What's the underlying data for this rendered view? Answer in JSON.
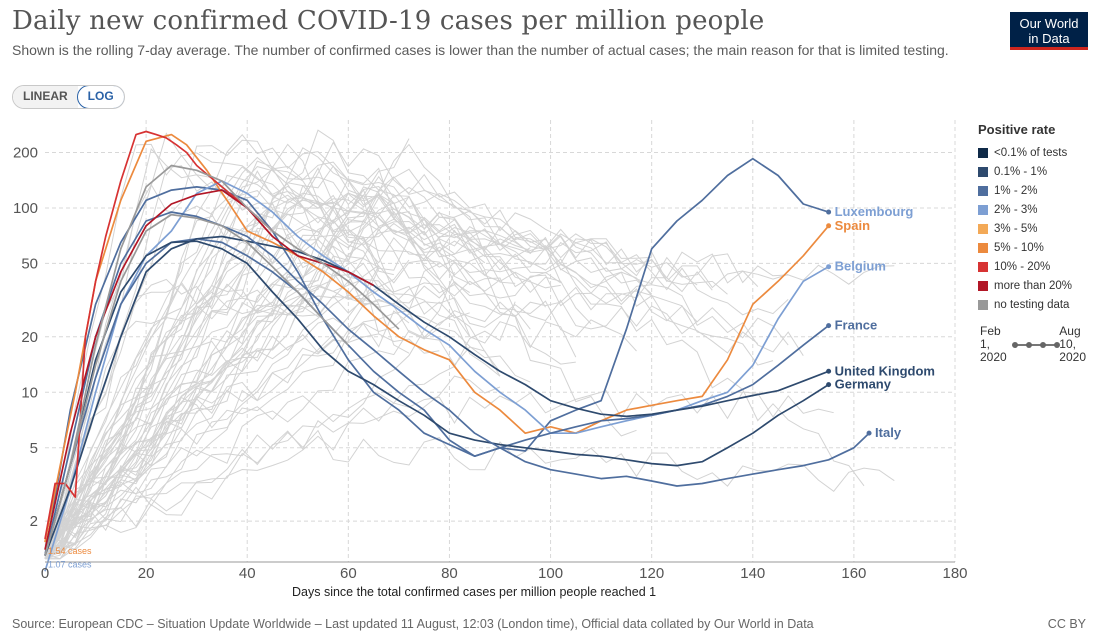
{
  "header": {
    "title": "Daily new confirmed COVID-19 cases per million people",
    "subtitle": "Shown is the rolling 7-day average. The number of confirmed cases is lower than the number of actual cases; the main reason for that is limited testing.",
    "logo_line1": "Our World",
    "logo_line2": "in Data"
  },
  "scale_toggle": {
    "linear_label": "LINEAR",
    "log_label": "LOG",
    "selected": "LOG"
  },
  "legend": {
    "title": "Positive rate",
    "items": [
      {
        "label": "<0.1% of tests",
        "color": "#0f2a48"
      },
      {
        "label": "0.1% - 1%",
        "color": "#2e4a6e"
      },
      {
        "label": "1% - 2%",
        "color": "#4f6e9e"
      },
      {
        "label": "2% - 3%",
        "color": "#7d9fd3"
      },
      {
        "label": "3% - 5%",
        "color": "#f3a957"
      },
      {
        "label": "5% - 10%",
        "color": "#ec8a3e"
      },
      {
        "label": "10% - 20%",
        "color": "#d73333"
      },
      {
        "label": "more than 20%",
        "color": "#b21626"
      },
      {
        "label": "no testing data",
        "color": "#999999"
      }
    ]
  },
  "timeline": {
    "start_line1": "Feb",
    "start_line2": "1,",
    "start_line3": "2020",
    "end_line1": "Aug",
    "end_line2": "10,",
    "end_line3": "2020"
  },
  "footer": {
    "source": "Source: European CDC – Situation Update Worldwide – Last updated 11 August, 12:03 (London time), Official data collated by Our World in Data",
    "license": "CC BY"
  },
  "chart_data": {
    "type": "line",
    "title": "Daily new confirmed COVID-19 cases per million people",
    "xlabel": "Days since the total confirmed cases per million people reached 1",
    "ylabel": "",
    "y_scale": "log",
    "xlim": [
      0,
      180
    ],
    "ylim": [
      1.2,
      300
    ],
    "x_ticks": [
      0,
      20,
      40,
      60,
      80,
      100,
      120,
      140,
      160,
      180
    ],
    "y_ticks": [
      2,
      5,
      10,
      20,
      50,
      100,
      200
    ],
    "grid": true,
    "legend_position": "right",
    "start_annotations": [
      {
        "text": "1.54 cases",
        "x": 0,
        "y": 1.54,
        "color": "#ec8a3e"
      },
      {
        "text": "1.07 cases",
        "x": 0,
        "y": 1.3,
        "color": "#7d9fd3"
      }
    ],
    "series": [
      {
        "name": "Luxembourg",
        "color": "#4f6e9e",
        "label_color": "#7d9fd3",
        "x": [
          0,
          5,
          10,
          15,
          20,
          25,
          30,
          35,
          40,
          45,
          50,
          55,
          60,
          65,
          70,
          75,
          80,
          85,
          90,
          95,
          100,
          105,
          110,
          115,
          120,
          125,
          130,
          135,
          140,
          145,
          150,
          155
        ],
        "y": [
          1.3,
          8,
          30,
          65,
          110,
          125,
          130,
          125,
          110,
          75,
          45,
          25,
          15,
          10,
          8,
          6,
          5.2,
          4.5,
          5,
          4.8,
          7,
          8,
          9,
          22,
          60,
          85,
          110,
          150,
          185,
          150,
          105,
          95
        ]
      },
      {
        "name": "Spain",
        "color": "#ec8a3e",
        "label_color": "#ec8a3e",
        "x": [
          0,
          3,
          6,
          10,
          15,
          20,
          25,
          28,
          32,
          36,
          40,
          45,
          50,
          55,
          60,
          65,
          70,
          75,
          80,
          85,
          90,
          95,
          100,
          105,
          110,
          115,
          120,
          125,
          130,
          135,
          140,
          145,
          150,
          155
        ],
        "y": [
          1.54,
          4,
          10,
          40,
          110,
          230,
          250,
          220,
          160,
          110,
          75,
          65,
          55,
          45,
          35,
          26,
          20,
          17,
          15,
          10,
          8,
          6,
          6.5,
          6,
          7,
          8,
          8.5,
          9,
          9.5,
          15,
          30,
          40,
          55,
          80
        ]
      },
      {
        "name": "Belgium",
        "color": "#7d9fd3",
        "label_color": "#7d9fd3",
        "x": [
          0,
          5,
          10,
          15,
          20,
          25,
          30,
          35,
          40,
          45,
          50,
          55,
          60,
          65,
          70,
          75,
          80,
          85,
          90,
          95,
          100,
          105,
          110,
          115,
          120,
          125,
          130,
          135,
          140,
          145,
          150,
          155
        ],
        "y": [
          1.07,
          3,
          10,
          30,
          55,
          75,
          120,
          140,
          120,
          95,
          70,
          55,
          45,
          35,
          28,
          22,
          18,
          13,
          10,
          8,
          6,
          6,
          6.5,
          7,
          7.5,
          8,
          9,
          10,
          14,
          25,
          40,
          48
        ]
      },
      {
        "name": "France",
        "color": "#4f6e9e",
        "label_color": "#4f6e9e",
        "x": [
          0,
          5,
          10,
          15,
          20,
          25,
          30,
          35,
          40,
          45,
          50,
          55,
          60,
          65,
          70,
          75,
          80,
          85,
          90,
          95,
          100,
          105,
          110,
          115,
          120,
          125,
          130,
          135,
          140,
          145,
          150,
          155
        ],
        "y": [
          1.3,
          4,
          12,
          30,
          50,
          65,
          68,
          65,
          55,
          45,
          35,
          25,
          18,
          13,
          10,
          8,
          5.5,
          4.5,
          5,
          5.5,
          6,
          6.5,
          7,
          7.2,
          7.5,
          8,
          8.5,
          9.5,
          11,
          14,
          18,
          23
        ]
      },
      {
        "name": "United Kingdom",
        "color": "#2e4a6e",
        "label_color": "#2e4a6e",
        "x": [
          0,
          5,
          10,
          15,
          20,
          25,
          30,
          35,
          40,
          45,
          50,
          55,
          60,
          65,
          70,
          75,
          80,
          85,
          90,
          95,
          100,
          105,
          110,
          115,
          120,
          125,
          130,
          135,
          140,
          145,
          150,
          155
        ],
        "y": [
          1.3,
          3,
          8,
          20,
          45,
          60,
          68,
          70,
          66,
          62,
          58,
          52,
          45,
          38,
          30,
          24,
          20,
          16,
          13,
          11,
          9,
          8.2,
          7.6,
          7.4,
          7.6,
          8,
          8.4,
          9,
          9.6,
          10.2,
          11.5,
          13
        ]
      },
      {
        "name": "Germany",
        "color": "#2e4a6e",
        "label_color": "#2e4a6e",
        "x": [
          0,
          5,
          10,
          15,
          20,
          25,
          30,
          35,
          40,
          45,
          50,
          55,
          60,
          65,
          70,
          75,
          80,
          85,
          90,
          95,
          100,
          105,
          110,
          115,
          120,
          125,
          130,
          135,
          140,
          145,
          150,
          155
        ],
        "y": [
          1.3,
          4,
          15,
          35,
          55,
          65,
          66,
          60,
          50,
          35,
          25,
          17,
          13,
          11,
          9,
          7.5,
          6,
          5.5,
          5.2,
          5,
          4.8,
          4.6,
          4.5,
          4.3,
          4.1,
          4,
          4.2,
          5,
          6,
          7.5,
          9,
          11
        ]
      },
      {
        "name": "Italy",
        "color": "#4f6e9e",
        "label_color": "#4f6e9e",
        "x": [
          0,
          5,
          10,
          15,
          20,
          25,
          30,
          35,
          40,
          45,
          50,
          55,
          60,
          65,
          70,
          75,
          80,
          85,
          90,
          95,
          100,
          105,
          110,
          115,
          120,
          125,
          130,
          135,
          140,
          145,
          150,
          155,
          160,
          163
        ],
        "y": [
          1.3,
          5,
          20,
          50,
          85,
          95,
          90,
          80,
          70,
          55,
          40,
          30,
          22,
          17,
          13,
          10,
          8,
          6,
          5,
          4.2,
          3.8,
          3.6,
          3.4,
          3.5,
          3.3,
          3.1,
          3.2,
          3.4,
          3.6,
          3.8,
          4,
          4.3,
          5,
          6
        ]
      },
      {
        "name": "",
        "color": "#d73333",
        "label_color": "#d73333",
        "x": [
          0,
          2,
          4,
          6,
          8,
          10,
          12,
          15,
          18,
          20,
          22,
          24,
          26,
          28,
          30,
          35,
          40,
          45
        ],
        "y": [
          1.6,
          3.2,
          3.2,
          2.7,
          20,
          40,
          70,
          140,
          250,
          260,
          250,
          240,
          220,
          200,
          170,
          130,
          100,
          75
        ]
      },
      {
        "name": "",
        "color": "#b21626",
        "label_color": "#b21626",
        "x": [
          0,
          5,
          10,
          15,
          20,
          25,
          30,
          35,
          40,
          45,
          50,
          55,
          60,
          65
        ],
        "y": [
          1.4,
          6,
          20,
          45,
          80,
          105,
          118,
          125,
          100,
          70,
          55,
          50,
          45,
          38
        ]
      },
      {
        "name": "",
        "color": "#999999",
        "label_color": "#999999",
        "x": [
          0,
          5,
          10,
          15,
          20,
          25,
          30,
          35,
          40,
          45,
          50,
          55,
          60,
          65,
          70
        ],
        "y": [
          1.3,
          4,
          18,
          60,
          130,
          170,
          160,
          140,
          100,
          75,
          60,
          50,
          40,
          30,
          22
        ]
      },
      {
        "name": "",
        "color": "#999999",
        "label_color": "#999999",
        "x": [
          0,
          5,
          10,
          15,
          20,
          25,
          30,
          35,
          40,
          45,
          50,
          55,
          60
        ],
        "y": [
          1.3,
          4,
          14,
          40,
          75,
          92,
          88,
          80,
          65,
          48,
          35,
          25,
          18
        ]
      }
    ],
    "background_series_count": 60
  }
}
